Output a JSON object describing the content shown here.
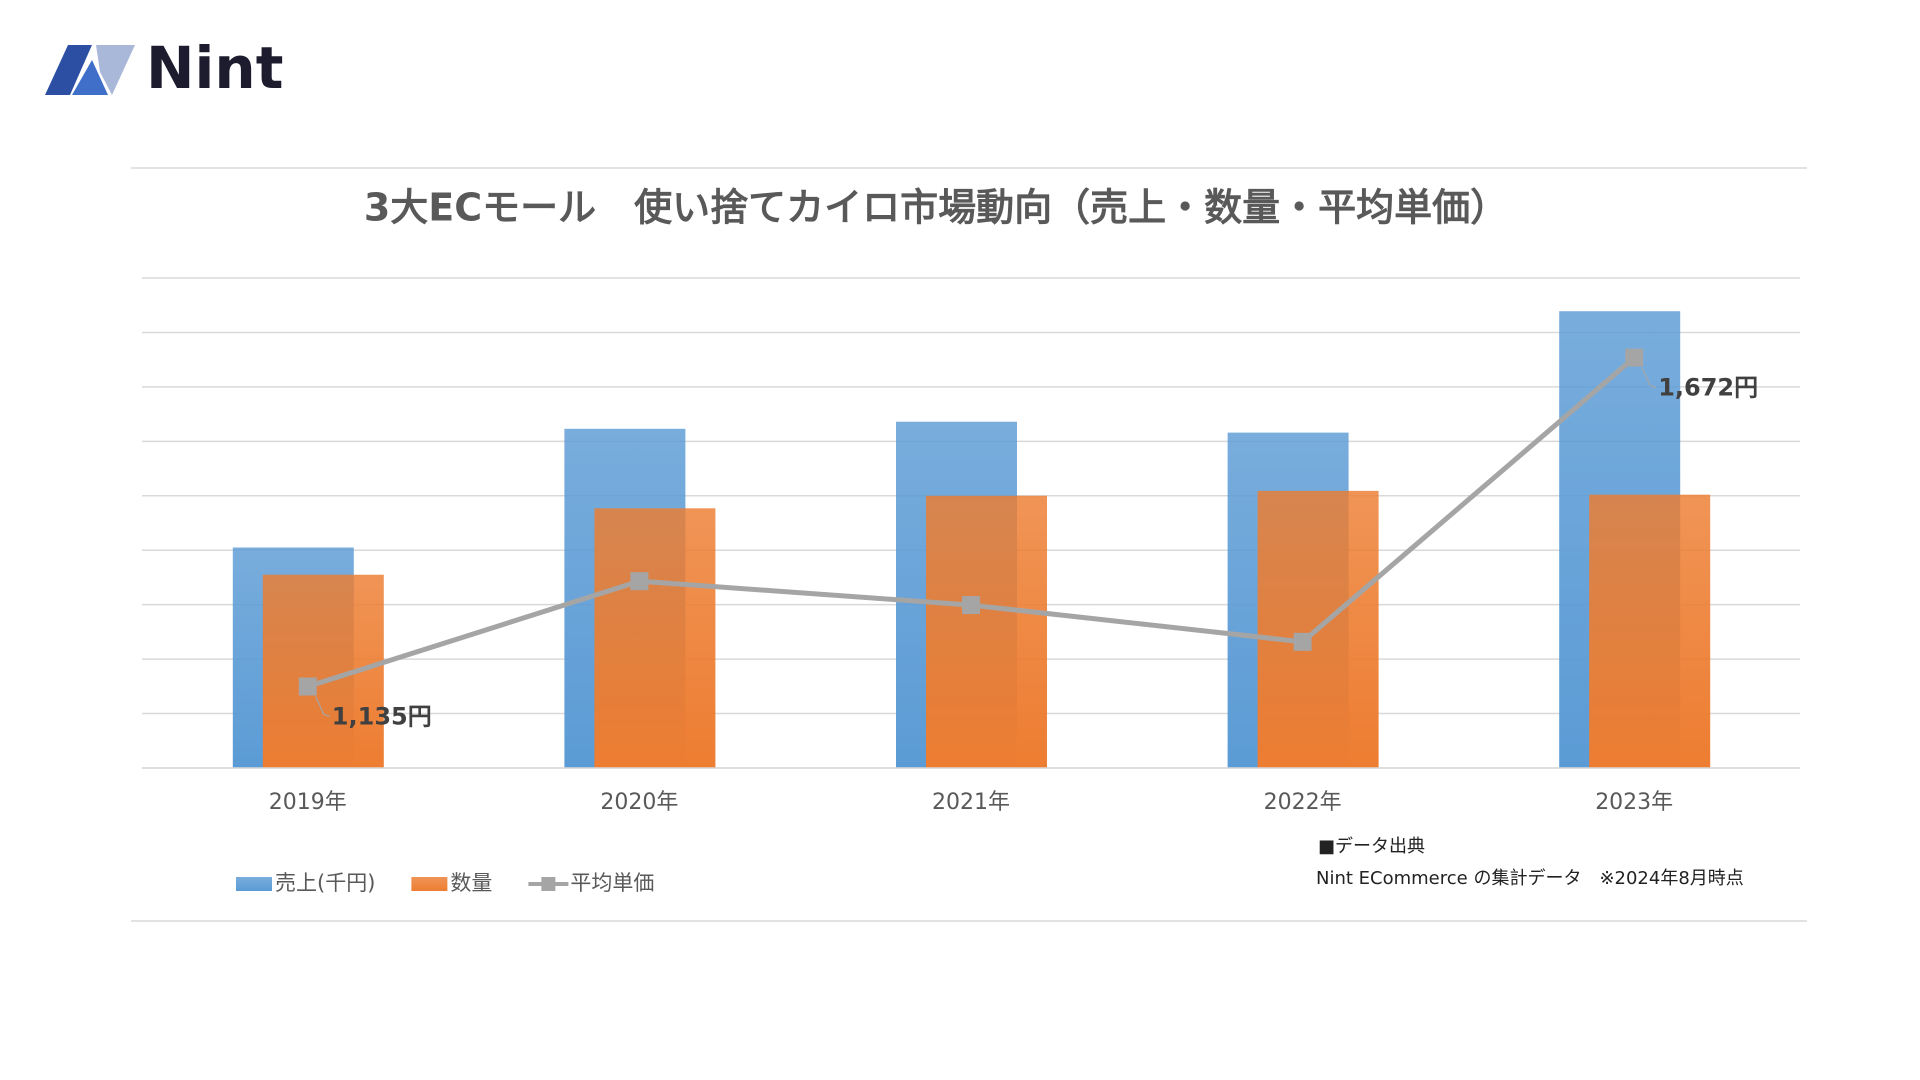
{
  "logo": "Nint",
  "chart_data": {
    "type": "bar",
    "title": "3大ECモール　使い捨てカイロ市場動向（売上・数量・平均単価）",
    "categories": [
      "2019年",
      "2020年",
      "2021年",
      "2022年",
      "2023年"
    ],
    "series": [
      {
        "name": "売上(千円)",
        "color": "#5b9bd5",
        "values": [
          4.05,
          6.23,
          6.36,
          6.16,
          8.39
        ]
      },
      {
        "name": "数量",
        "color": "#ed7d31",
        "values": [
          3.55,
          4.77,
          5.0,
          5.09,
          5.02
        ]
      },
      {
        "name": "平均単価",
        "type": "line",
        "axis": "y2",
        "color": "#a5a5a5",
        "values": [
          1135,
          1307,
          1268,
          1208,
          1672
        ],
        "value_labels": [
          "1,135円",
          null,
          null,
          null,
          "1,672円"
        ]
      }
    ],
    "ylim": [
      0,
      9
    ],
    "yticks": [
      0,
      1,
      2,
      3,
      4,
      5,
      6,
      7,
      8,
      9
    ],
    "y2lim": [
      1002,
      1802
    ],
    "grid": true,
    "legend": "bottom-left",
    "source": {
      "heading": "■データ出典",
      "text": "Nint ECommerce の集計データ　※2024年8月時点"
    }
  }
}
